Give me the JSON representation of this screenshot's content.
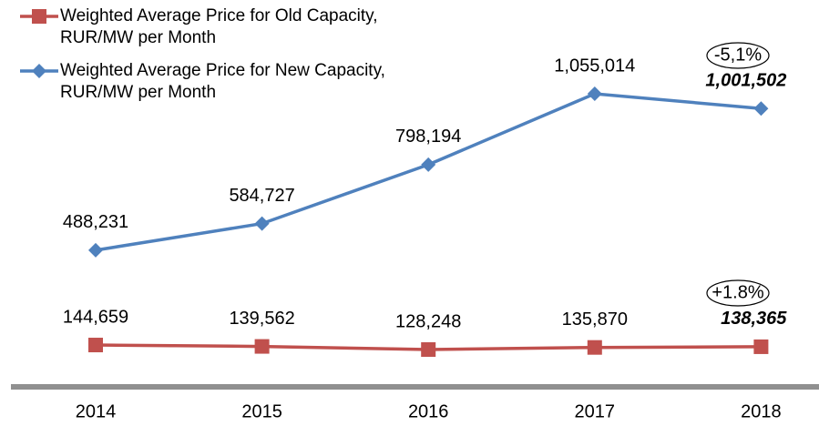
{
  "chart_data": {
    "type": "line",
    "categories": [
      "2014",
      "2015",
      "2016",
      "2017",
      "2018"
    ],
    "series": [
      {
        "name": "Weighted Average Price for Old  Capacity, RUR/MW per Month",
        "color": "#c0504d",
        "marker": "square",
        "values": [
          144659,
          139562,
          128248,
          135870,
          138365
        ],
        "value_labels": [
          "144,659",
          "139,562",
          "128,248",
          "135,870",
          "138,365"
        ]
      },
      {
        "name": "Weighted Average Price for New Capacity, RUR/MW per Month",
        "color": "#4f81bd",
        "marker": "diamond",
        "values": [
          488231,
          584727,
          798194,
          1055014,
          1001502
        ],
        "value_labels": [
          "488,231",
          "584,727",
          "798,194",
          "1,055,014",
          "1,001,502"
        ]
      }
    ],
    "annotations": [
      "-5,1%",
      "+1.8%"
    ]
  }
}
